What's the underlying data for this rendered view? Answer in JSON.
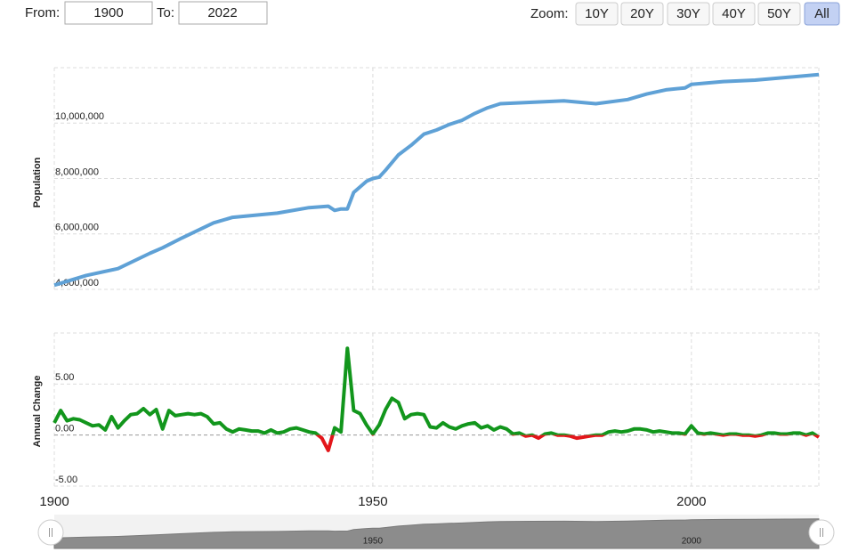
{
  "controls": {
    "from_label": "From:",
    "from_value": "1900",
    "to_label": "To:",
    "to_value": "2022",
    "zoom_label": "Zoom:",
    "zoom_buttons": [
      "10Y",
      "20Y",
      "30Y",
      "40Y",
      "50Y",
      "All"
    ],
    "active_button": "All"
  },
  "chart_data": [
    {
      "type": "line",
      "y_label": "Population",
      "color": "#5fa1d6",
      "x": [
        1900,
        1905,
        1910,
        1915,
        1917,
        1920,
        1925,
        1928,
        1935,
        1940,
        1943,
        1944,
        1945,
        1946,
        1947,
        1949,
        1950,
        1951,
        1952,
        1954,
        1956,
        1958,
        1960,
        1962,
        1964,
        1966,
        1968,
        1970,
        1975,
        1980,
        1985,
        1990,
        1993,
        1996,
        1999,
        2000,
        2005,
        2010,
        2015,
        2020
      ],
      "values": [
        4150000,
        4500000,
        4750000,
        5300000,
        5500000,
        5850000,
        6400000,
        6600000,
        6750000,
        6950000,
        7000000,
        6850000,
        6900000,
        6900000,
        7500000,
        7900000,
        8000000,
        8050000,
        8300000,
        8850000,
        9200000,
        9600000,
        9750000,
        9950000,
        10100000,
        10350000,
        10550000,
        10700000,
        10750000,
        10800000,
        10700000,
        10850000,
        11050000,
        11200000,
        11270000,
        11400000,
        11500000,
        11550000,
        11650000,
        11750000
      ],
      "xlim": [
        1900,
        2020
      ],
      "ylim": [
        4000000,
        12000000
      ],
      "yticks": [
        {
          "value": 4000000,
          "label": "4,000,000"
        },
        {
          "value": 6000000,
          "label": "6,000,000"
        },
        {
          "value": 8000000,
          "label": "8,000,000"
        },
        {
          "value": 10000000,
          "label": "10,000,000"
        }
      ],
      "grid": true
    },
    {
      "type": "signed_line",
      "y_label": "Annual Change",
      "color": "#12961c",
      "negative_color": "#e3161a",
      "x": [
        1900,
        1901,
        1902,
        1903,
        1904,
        1905,
        1906,
        1907,
        1908,
        1909,
        1910,
        1911,
        1912,
        1913,
        1914,
        1915,
        1916,
        1917,
        1918,
        1919,
        1920,
        1921,
        1922,
        1923,
        1924,
        1925,
        1926,
        1927,
        1928,
        1929,
        1930,
        1931,
        1932,
        1933,
        1934,
        1935,
        1936,
        1937,
        1938,
        1939,
        1940,
        1941,
        1942,
        1943,
        1944,
        1945,
        1946,
        1947,
        1948,
        1949,
        1950,
        1951,
        1952,
        1953,
        1954,
        1955,
        1956,
        1957,
        1958,
        1959,
        1960,
        1961,
        1962,
        1963,
        1964,
        1965,
        1966,
        1967,
        1968,
        1969,
        1970,
        1971,
        1972,
        1973,
        1974,
        1975,
        1976,
        1977,
        1978,
        1979,
        1980,
        1981,
        1982,
        1983,
        1984,
        1985,
        1986,
        1987,
        1988,
        1989,
        1990,
        1991,
        1992,
        1993,
        1994,
        1995,
        1996,
        1997,
        1998,
        1999,
        2000,
        2001,
        2002,
        2003,
        2004,
        2005,
        2006,
        2007,
        2008,
        2009,
        2010,
        2011,
        2012,
        2013,
        2014,
        2015,
        2016,
        2017,
        2018,
        2019,
        2020
      ],
      "values": [
        1.2,
        2.4,
        1.4,
        1.6,
        1.5,
        1.2,
        0.9,
        1.0,
        0.5,
        1.8,
        0.7,
        1.4,
        2.0,
        2.1,
        2.6,
        2.0,
        2.5,
        0.6,
        2.4,
        1.9,
        2.0,
        2.1,
        2.0,
        2.1,
        1.8,
        1.1,
        1.2,
        0.6,
        0.3,
        0.6,
        0.5,
        0.4,
        0.4,
        0.2,
        0.5,
        0.2,
        0.3,
        0.6,
        0.7,
        0.5,
        0.3,
        0.2,
        -0.3,
        -1.5,
        0.7,
        0.3,
        8.5,
        2.4,
        2.1,
        1.0,
        0.1,
        1.0,
        2.5,
        3.6,
        3.2,
        1.6,
        2.0,
        2.1,
        2.0,
        0.8,
        0.7,
        1.2,
        0.8,
        0.6,
        0.9,
        1.1,
        1.2,
        0.7,
        0.9,
        0.5,
        0.8,
        0.6,
        0.1,
        0.2,
        -0.1,
        0.0,
        -0.3,
        0.1,
        0.2,
        0.0,
        0.0,
        -0.1,
        -0.3,
        -0.2,
        -0.1,
        0.0,
        0.0,
        0.3,
        0.4,
        0.3,
        0.4,
        0.6,
        0.6,
        0.5,
        0.3,
        0.4,
        0.3,
        0.2,
        0.2,
        0.1,
        0.9,
        0.2,
        0.1,
        0.2,
        0.1,
        0.0,
        0.1,
        0.1,
        0.0,
        0.0,
        -0.1,
        0.0,
        0.2,
        0.2,
        0.1,
        0.1,
        0.2,
        0.2,
        0.0,
        0.2,
        -0.2
      ],
      "xlim": [
        1900,
        2020
      ],
      "ylim": [
        -5,
        10
      ],
      "xticks": [
        1900,
        1950,
        2000
      ],
      "yticks": [
        {
          "value": -5,
          "label": "-5.00"
        },
        {
          "value": 0,
          "label": "0.00"
        },
        {
          "value": 5,
          "label": "5.00"
        }
      ],
      "grid": true
    }
  ],
  "navigator": {
    "labels": [
      1950,
      2000
    ]
  }
}
